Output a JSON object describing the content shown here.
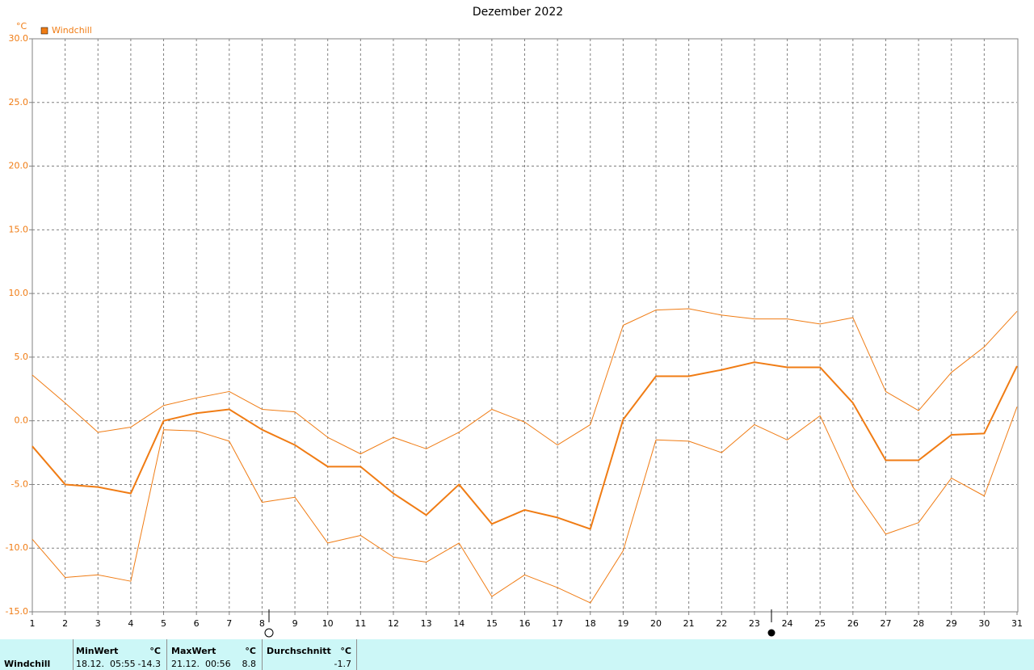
{
  "chart_data": {
    "type": "line",
    "title": "Dezember 2022",
    "y_label": "°C",
    "x": [
      1,
      2,
      3,
      4,
      5,
      6,
      7,
      8,
      9,
      10,
      11,
      12,
      13,
      14,
      15,
      16,
      17,
      18,
      19,
      20,
      21,
      22,
      23,
      24,
      25,
      26,
      27,
      28,
      29,
      30,
      31
    ],
    "xlim": [
      1,
      31
    ],
    "xticks": [
      1,
      2,
      3,
      4,
      5,
      6,
      7,
      8,
      9,
      10,
      11,
      12,
      13,
      14,
      15,
      16,
      17,
      18,
      19,
      20,
      21,
      22,
      23,
      24,
      25,
      26,
      27,
      28,
      29,
      30,
      31
    ],
    "ylim": [
      -15,
      30
    ],
    "yticks": [
      {
        "value": -15,
        "label": "-15.0"
      },
      {
        "value": -10,
        "label": "-10.0"
      },
      {
        "value": -5,
        "label": "-5.0"
      },
      {
        "value": 0,
        "label": "0.0"
      },
      {
        "value": 5,
        "label": "5.0"
      },
      {
        "value": 10,
        "label": "10.0"
      },
      {
        "value": 15,
        "label": "15.0"
      },
      {
        "value": 20,
        "label": "20.0"
      },
      {
        "value": 25,
        "label": "25.0"
      },
      {
        "value": 30,
        "label": "30.0"
      }
    ],
    "grid": true,
    "legend": "top-left",
    "series": [
      {
        "name": "Windchill",
        "color": "#f07c14",
        "values": [
          -2.0,
          -5.0,
          -5.2,
          -5.7,
          0.0,
          0.6,
          0.9,
          -0.7,
          -1.9,
          -3.6,
          -3.6,
          -5.7,
          -7.4,
          -5.0,
          -8.1,
          -7.0,
          -7.6,
          -8.5,
          0.1,
          3.5,
          3.5,
          4.0,
          4.6,
          4.2,
          4.2,
          1.4,
          -3.1,
          -3.1,
          -1.1,
          -1.0,
          4.3
        ]
      },
      {
        "color": "#f07c14",
        "values": [
          3.6,
          1.4,
          -0.9,
          -0.5,
          1.2,
          1.8,
          2.3,
          0.9,
          0.7,
          -1.3,
          -2.6,
          -1.3,
          -2.2,
          -0.9,
          0.9,
          -0.1,
          -1.9,
          -0.3,
          7.5,
          8.7,
          8.8,
          8.3,
          8.0,
          8.0,
          7.6,
          8.1,
          2.3,
          0.8,
          3.8,
          5.8,
          8.6
        ]
      },
      {
        "color": "#f07c14",
        "values": [
          -9.3,
          -12.3,
          -12.1,
          -12.6,
          -0.7,
          -0.8,
          -1.6,
          -6.4,
          -6.0,
          -9.6,
          -9.0,
          -10.7,
          -11.1,
          -9.6,
          -13.8,
          -12.1,
          -13.1,
          -14.3,
          -10.2,
          -1.5,
          -1.6,
          -2.5,
          -0.3,
          -1.5,
          0.4,
          -5.2,
          -8.9,
          -8.0,
          -4.5,
          -5.9,
          1.1
        ]
      }
    ]
  },
  "summary": {
    "row_label": "Windchill",
    "min": {
      "header": "MinWert",
      "unit": "°C",
      "time": "18.12.  05:55",
      "value": -14.3
    },
    "max": {
      "header": "MaxWert",
      "unit": "°C",
      "time": "21.12.  00:56",
      "value": 8.8
    },
    "avg": {
      "header": "Durchschnitt",
      "unit": "°C",
      "value": -1.7
    }
  }
}
